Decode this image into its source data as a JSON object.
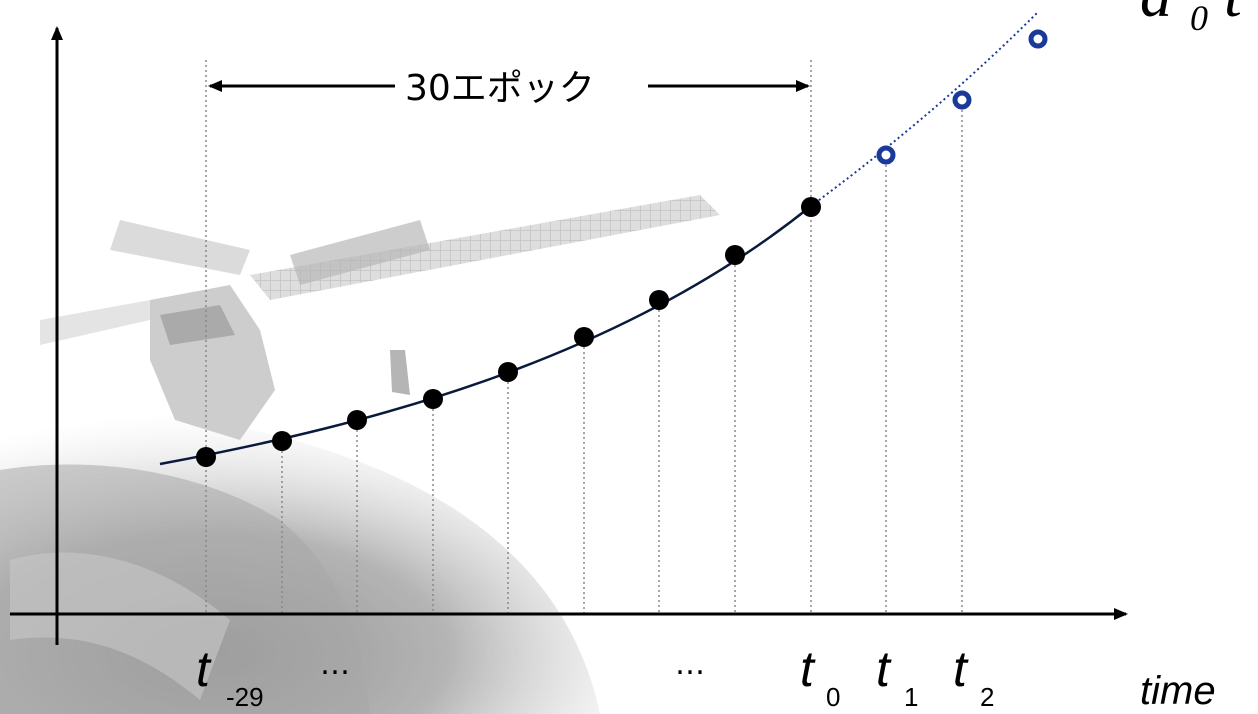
{
  "diagram": {
    "span_label": "30エポック",
    "x_axis_label": "time",
    "ellipsis": "…",
    "formula_fragment": "a",
    "formula_subscript": "0",
    "formula_trailing": "t",
    "tick_labels": [
      {
        "symbol": "t",
        "subscript": "-29"
      },
      {
        "symbol": "t",
        "subscript": "0"
      },
      {
        "symbol": "t",
        "subscript": "1"
      },
      {
        "symbol": "t",
        "subscript": "2"
      }
    ],
    "colors": {
      "axis": "#000000",
      "curve": "#0a1a3c",
      "observed_point": "#000000",
      "predicted_point": "#1a3a9a",
      "guide_line": "#888888",
      "background_image_tone": "#9a9a9a"
    },
    "observed_point_count": 9,
    "predicted_point_count": 3
  }
}
